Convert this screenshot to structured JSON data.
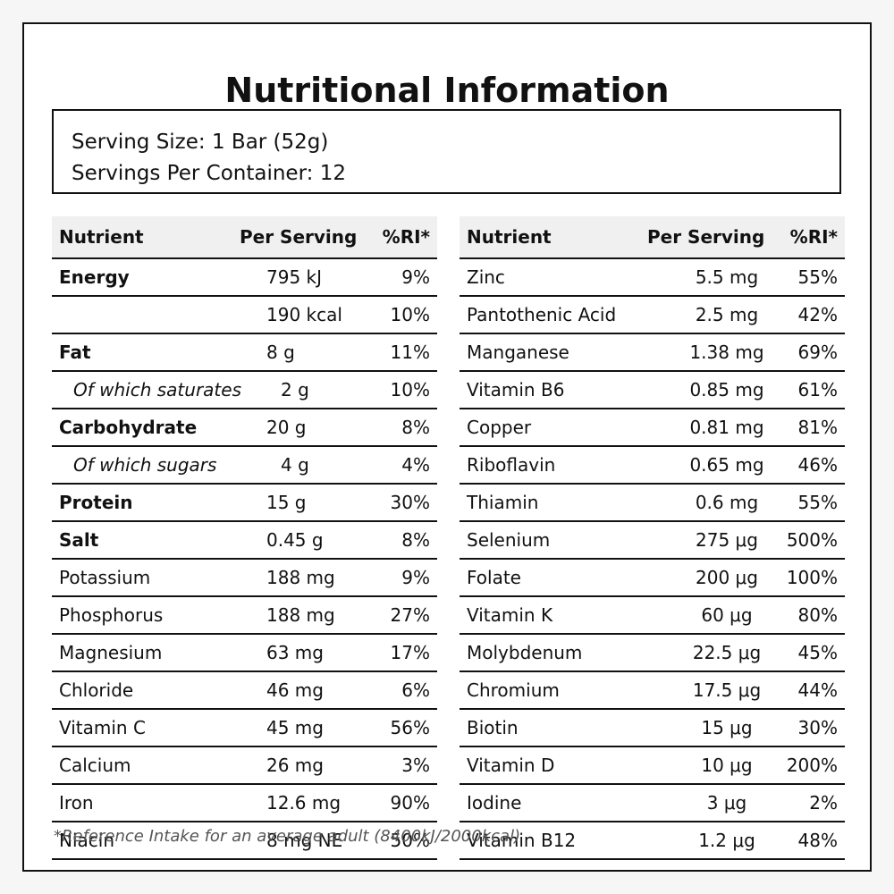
{
  "title": "Nutritional Information",
  "serving": {
    "size": "Serving Size: 1 Bar (52g)",
    "per_container": "Servings Per Container: 12"
  },
  "table_headers": {
    "nutrient": "Nutrient",
    "per_serving": "Per Serving",
    "ri": "%RI*"
  },
  "left_rows": [
    {
      "name": "Energy",
      "amount": "795 kJ",
      "ri": "9%",
      "style": "bold"
    },
    {
      "name": "",
      "amount": "190 kcal",
      "ri": "10%",
      "style": "normal"
    },
    {
      "name": "Fat",
      "amount": "8 g",
      "ri": "11%",
      "style": "bold"
    },
    {
      "name": "Of which saturates",
      "amount": "2 g",
      "ri": "10%",
      "style": "sub"
    },
    {
      "name": "Carbohydrate",
      "amount": "20 g",
      "ri": "8%",
      "style": "bold"
    },
    {
      "name": "Of which sugars",
      "amount": "4 g",
      "ri": "4%",
      "style": "sub"
    },
    {
      "name": "Protein",
      "amount": "15 g",
      "ri": "30%",
      "style": "bold"
    },
    {
      "name": "Salt",
      "amount": "0.45 g",
      "ri": "8%",
      "style": "bold"
    },
    {
      "name": "Potassium",
      "amount": "188 mg",
      "ri": "9%",
      "style": "normal"
    },
    {
      "name": "Phosphorus",
      "amount": "188 mg",
      "ri": "27%",
      "style": "normal"
    },
    {
      "name": "Magnesium",
      "amount": "63 mg",
      "ri": "17%",
      "style": "normal"
    },
    {
      "name": "Chloride",
      "amount": "46 mg",
      "ri": "6%",
      "style": "normal"
    },
    {
      "name": "Vitamin C",
      "amount": "45 mg",
      "ri": "56%",
      "style": "normal"
    },
    {
      "name": "Calcium",
      "amount": "26 mg",
      "ri": "3%",
      "style": "normal"
    },
    {
      "name": "Iron",
      "amount": "12.6 mg",
      "ri": "90%",
      "style": "normal"
    },
    {
      "name": "Niacin",
      "amount": "8 mg NE",
      "ri": "50%",
      "style": "normal"
    }
  ],
  "right_rows": [
    {
      "name": "Zinc",
      "amount": "5.5 mg",
      "ri": "55%"
    },
    {
      "name": "Pantothenic Acid",
      "amount": "2.5 mg",
      "ri": "42%"
    },
    {
      "name": "Manganese",
      "amount": "1.38 mg",
      "ri": "69%"
    },
    {
      "name": "Vitamin B6",
      "amount": "0.85 mg",
      "ri": "61%"
    },
    {
      "name": "Copper",
      "amount": "0.81 mg",
      "ri": "81%"
    },
    {
      "name": "Riboflavin",
      "amount": "0.65 mg",
      "ri": "46%"
    },
    {
      "name": "Thiamin",
      "amount": "0.6 mg",
      "ri": "55%"
    },
    {
      "name": "Selenium",
      "amount": "275 μg",
      "ri": "500%"
    },
    {
      "name": "Folate",
      "amount": "200 μg",
      "ri": "100%"
    },
    {
      "name": "Vitamin K",
      "amount": "60 μg",
      "ri": "80%"
    },
    {
      "name": "Molybdenum",
      "amount": "22.5 μg",
      "ri": "45%"
    },
    {
      "name": "Chromium",
      "amount": "17.5 μg",
      "ri": "44%"
    },
    {
      "name": "Biotin",
      "amount": "15 μg",
      "ri": "30%"
    },
    {
      "name": "Vitamin D",
      "amount": "10 μg",
      "ri": "200%"
    },
    {
      "name": "Iodine",
      "amount": "3 μg",
      "ri": "2%"
    },
    {
      "name": "Vitamin B12",
      "amount": "1.2 μg",
      "ri": "48%"
    }
  ],
  "footnote": "*Reference Intake for an average adult (8400kJ/2000kcal)"
}
